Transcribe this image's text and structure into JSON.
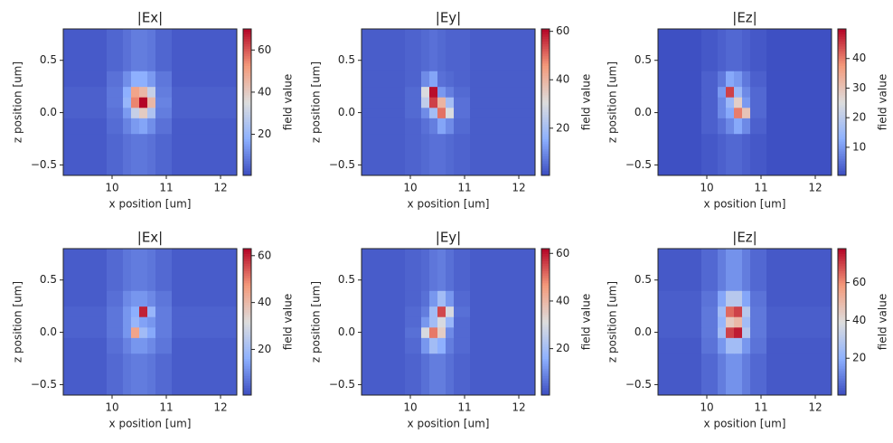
{
  "chart_data": [
    {
      "type": "heatmap",
      "title": "|Ex|",
      "xlabel": "x position [um]",
      "ylabel": "z position [um]",
      "clabel": "field value",
      "colormap": "coolwarm",
      "x_edges": [
        9.1,
        9.9,
        10.2,
        10.35,
        10.5,
        10.65,
        10.8,
        11.1,
        12.3
      ],
      "y_edges": [
        -0.6,
        -0.2,
        -0.05,
        0.05,
        0.15,
        0.25,
        0.4,
        0.8
      ],
      "values": [
        [
          3,
          5,
          7,
          8,
          8,
          7,
          5,
          3
        ],
        [
          3,
          6,
          10,
          14,
          16,
          12,
          7,
          3
        ],
        [
          4,
          7,
          14,
          30,
          40,
          25,
          9,
          4
        ],
        [
          4,
          8,
          20,
          55,
          70,
          45,
          10,
          4
        ],
        [
          4,
          8,
          18,
          50,
          45,
          30,
          9,
          4
        ],
        [
          3,
          7,
          12,
          18,
          18,
          14,
          8,
          3
        ],
        [
          3,
          5,
          7,
          9,
          9,
          8,
          5,
          3
        ]
      ],
      "xlim": [
        9.1,
        12.3
      ],
      "ylim": [
        -0.6,
        0.8
      ],
      "xticks": [
        10,
        11,
        12
      ],
      "yticks": [
        {
          "value": -0.5,
          "label": "−0.5"
        },
        {
          "value": 0,
          "label": "0.0"
        },
        0.5
      ],
      "clim": [
        0.5,
        70
      ],
      "cticks": [
        20,
        40,
        60
      ]
    },
    {
      "type": "heatmap",
      "title": "|Ey|",
      "xlabel": "x position [um]",
      "ylabel": "z position [um]",
      "clabel": "field value",
      "colormap": "coolwarm",
      "x_edges": [
        9.1,
        9.9,
        10.2,
        10.35,
        10.5,
        10.65,
        10.8,
        11.1,
        12.3
      ],
      "y_edges": [
        -0.6,
        -0.2,
        -0.05,
        0.05,
        0.15,
        0.25,
        0.4,
        0.8
      ],
      "values": [
        [
          3,
          4,
          5,
          6,
          6,
          5,
          4,
          3
        ],
        [
          3,
          4,
          6,
          8,
          14,
          10,
          5,
          3
        ],
        [
          3,
          5,
          10,
          20,
          50,
          30,
          6,
          3
        ],
        [
          3,
          5,
          25,
          55,
          40,
          20,
          6,
          3
        ],
        [
          3,
          5,
          30,
          60,
          12,
          8,
          5,
          3
        ],
        [
          3,
          4,
          10,
          14,
          6,
          5,
          4,
          3
        ],
        [
          3,
          4,
          5,
          6,
          5,
          4,
          4,
          3
        ]
      ],
      "xlim": [
        9.1,
        12.3
      ],
      "ylim": [
        -0.6,
        0.8
      ],
      "xticks": [
        10,
        11,
        12
      ],
      "yticks": [
        {
          "value": -0.5,
          "label": "−0.5"
        },
        {
          "value": 0,
          "label": "0.0"
        },
        0.5
      ],
      "clim": [
        0.5,
        61
      ],
      "cticks": [
        20,
        40,
        60
      ]
    },
    {
      "type": "heatmap",
      "title": "|Ez|",
      "xlabel": "x position [um]",
      "ylabel": "z position [um]",
      "clabel": "field value",
      "colormap": "coolwarm",
      "x_edges": [
        9.1,
        9.9,
        10.2,
        10.35,
        10.5,
        10.65,
        10.8,
        11.1,
        12.3
      ],
      "y_edges": [
        -0.6,
        -0.2,
        -0.05,
        0.05,
        0.15,
        0.25,
        0.4,
        0.8
      ],
      "values": [
        [
          1,
          2,
          3,
          4,
          4,
          3,
          2,
          1
        ],
        [
          1,
          3,
          5,
          8,
          12,
          8,
          3,
          1
        ],
        [
          1,
          3,
          8,
          12,
          40,
          30,
          4,
          1
        ],
        [
          1,
          3,
          8,
          15,
          28,
          10,
          4,
          1
        ],
        [
          1,
          3,
          10,
          45,
          15,
          8,
          4,
          1
        ],
        [
          1,
          3,
          6,
          12,
          10,
          6,
          3,
          1
        ],
        [
          1,
          2,
          3,
          4,
          4,
          3,
          2,
          1
        ]
      ],
      "xlim": [
        9.1,
        12.3
      ],
      "ylim": [
        -0.6,
        0.8
      ],
      "xticks": [
        10,
        11,
        12
      ],
      "yticks": [
        {
          "value": -0.5,
          "label": "−0.5"
        },
        {
          "value": 0,
          "label": "0.0"
        },
        0.5
      ],
      "clim": [
        0.5,
        50
      ],
      "cticks": [
        10,
        20,
        30,
        40
      ]
    },
    {
      "type": "heatmap",
      "title": "|Ex|",
      "xlabel": "x position [um]",
      "ylabel": "z position [um]",
      "clabel": "field value",
      "colormap": "coolwarm",
      "x_edges": [
        9.1,
        9.9,
        10.2,
        10.35,
        10.5,
        10.65,
        10.8,
        11.1,
        12.3
      ],
      "y_edges": [
        -0.6,
        -0.2,
        -0.05,
        0.05,
        0.15,
        0.25,
        0.4,
        0.8
      ],
      "values": [
        [
          3,
          5,
          7,
          8,
          8,
          7,
          5,
          3
        ],
        [
          3,
          6,
          9,
          12,
          12,
          10,
          7,
          3
        ],
        [
          4,
          7,
          12,
          45,
          20,
          15,
          8,
          4
        ],
        [
          4,
          7,
          12,
          18,
          14,
          12,
          8,
          4
        ],
        [
          4,
          7,
          12,
          16,
          60,
          18,
          8,
          4
        ],
        [
          3,
          6,
          10,
          12,
          12,
          10,
          7,
          3
        ],
        [
          3,
          5,
          7,
          8,
          8,
          7,
          5,
          3
        ]
      ],
      "xlim": [
        9.1,
        12.3
      ],
      "ylim": [
        -0.6,
        0.8
      ],
      "xticks": [
        10,
        11,
        12
      ],
      "yticks": [
        {
          "value": -0.5,
          "label": "−0.5"
        },
        {
          "value": 0,
          "label": "0.0"
        },
        0.5
      ],
      "clim": [
        0.5,
        63
      ],
      "cticks": [
        20,
        40,
        60
      ]
    },
    {
      "type": "heatmap",
      "title": "|Ey|",
      "xlabel": "x position [um]",
      "ylabel": "z position [um]",
      "clabel": "field value",
      "colormap": "coolwarm",
      "x_edges": [
        9.1,
        9.9,
        10.2,
        10.35,
        10.5,
        10.65,
        10.8,
        11.1,
        12.3
      ],
      "y_edges": [
        -0.6,
        -0.2,
        -0.05,
        0.05,
        0.15,
        0.25,
        0.4,
        0.8
      ],
      "values": [
        [
          3,
          4,
          6,
          8,
          8,
          6,
          4,
          3
        ],
        [
          3,
          5,
          12,
          20,
          16,
          8,
          5,
          3
        ],
        [
          3,
          6,
          30,
          50,
          35,
          10,
          5,
          3
        ],
        [
          3,
          5,
          12,
          20,
          30,
          18,
          5,
          3
        ],
        [
          3,
          5,
          8,
          20,
          55,
          30,
          6,
          3
        ],
        [
          3,
          4,
          6,
          12,
          20,
          12,
          5,
          3
        ],
        [
          3,
          4,
          5,
          7,
          8,
          6,
          4,
          3
        ]
      ],
      "xlim": [
        9.1,
        12.3
      ],
      "ylim": [
        -0.6,
        0.8
      ],
      "xticks": [
        10,
        11,
        12
      ],
      "yticks": [
        {
          "value": -0.5,
          "label": "−0.5"
        },
        {
          "value": 0,
          "label": "0.0"
        },
        0.5
      ],
      "clim": [
        0.5,
        62
      ],
      "cticks": [
        20,
        40,
        60
      ]
    },
    {
      "type": "heatmap",
      "title": "|Ez|",
      "xlabel": "x position [um]",
      "ylabel": "z position [um]",
      "clabel": "field value",
      "colormap": "coolwarm",
      "x_edges": [
        9.1,
        9.9,
        10.2,
        10.35,
        10.5,
        10.65,
        10.8,
        11.1,
        12.3
      ],
      "y_edges": [
        -0.6,
        -0.2,
        -0.05,
        0.05,
        0.15,
        0.25,
        0.4,
        0.8
      ],
      "values": [
        [
          3,
          6,
          10,
          14,
          14,
          10,
          6,
          3
        ],
        [
          3,
          8,
          15,
          25,
          25,
          15,
          8,
          3
        ],
        [
          4,
          9,
          25,
          70,
          75,
          30,
          9,
          4
        ],
        [
          4,
          9,
          22,
          45,
          50,
          25,
          9,
          4
        ],
        [
          4,
          9,
          25,
          65,
          70,
          30,
          9,
          4
        ],
        [
          4,
          8,
          18,
          30,
          30,
          18,
          8,
          3
        ],
        [
          3,
          6,
          10,
          14,
          14,
          10,
          6,
          3
        ]
      ],
      "xlim": [
        9.1,
        12.3
      ],
      "ylim": [
        -0.6,
        0.8
      ],
      "xticks": [
        10,
        11,
        12
      ],
      "yticks": [
        {
          "value": -0.5,
          "label": "−0.5"
        },
        {
          "value": 0,
          "label": "0.0"
        },
        0.5
      ],
      "clim": [
        0.5,
        78
      ],
      "cticks": [
        20,
        40,
        60
      ]
    }
  ]
}
